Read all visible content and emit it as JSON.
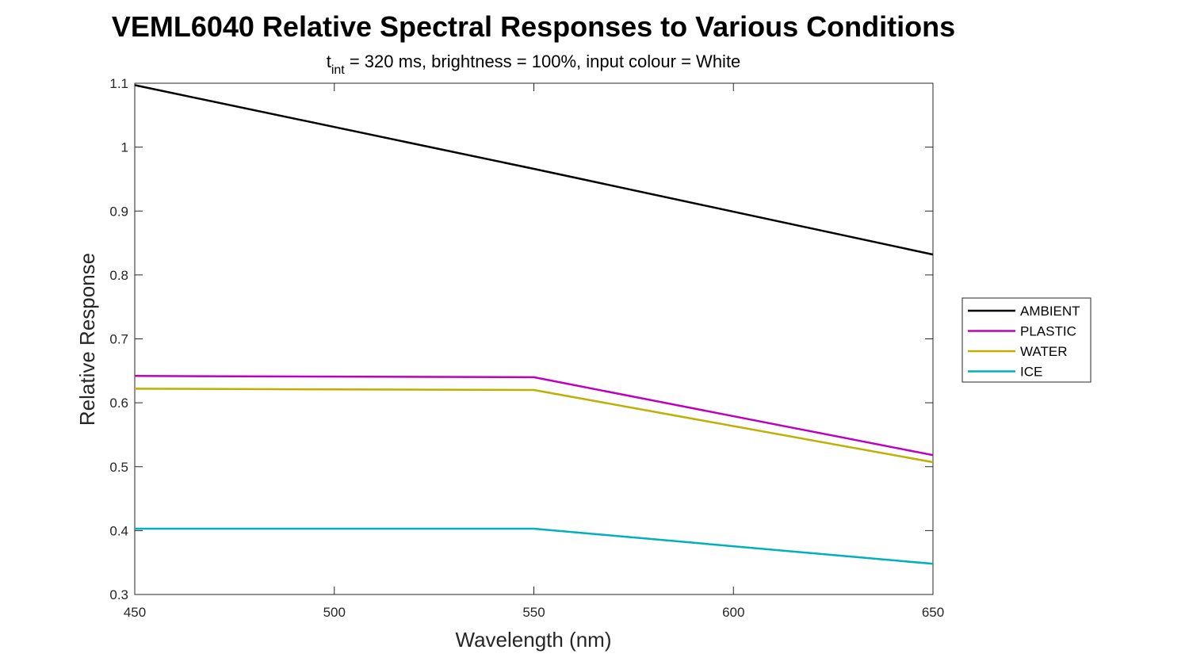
{
  "chart_data": {
    "type": "line",
    "title": "VEML6040 Relative Spectral Responses to Various Conditions",
    "subtitle": {
      "prefix": "t",
      "subscript": "int",
      "rest": " = 320 ms, brightness = 100%, input colour = White"
    },
    "xlabel": "Wavelength (nm)",
    "ylabel": "Relative Response",
    "xlim": [
      450,
      650
    ],
    "ylim": [
      0.3,
      1.1
    ],
    "xticks": [
      450,
      500,
      550,
      600,
      650
    ],
    "yticks": [
      0.3,
      0.4,
      0.5,
      0.6,
      0.7,
      0.8,
      0.9,
      1.0,
      1.1
    ],
    "ytick_labels": [
      "0.3",
      "0.4",
      "0.5",
      "0.6",
      "0.7",
      "0.8",
      "0.9",
      "1",
      "1.1"
    ],
    "grid": false,
    "legend_position": "outside-right",
    "x": [
      450,
      550,
      650
    ],
    "series": [
      {
        "name": "AMBIENT",
        "color": "#000000",
        "values": [
          1.097,
          0.966,
          0.832
        ]
      },
      {
        "name": "PLASTIC",
        "color": "#bd00bd",
        "values": [
          0.642,
          0.64,
          0.518
        ]
      },
      {
        "name": "WATER",
        "color": "#bdb000",
        "values": [
          0.622,
          0.62,
          0.507
        ]
      },
      {
        "name": "ICE",
        "color": "#00b0bd",
        "values": [
          0.403,
          0.403,
          0.348
        ]
      }
    ]
  }
}
